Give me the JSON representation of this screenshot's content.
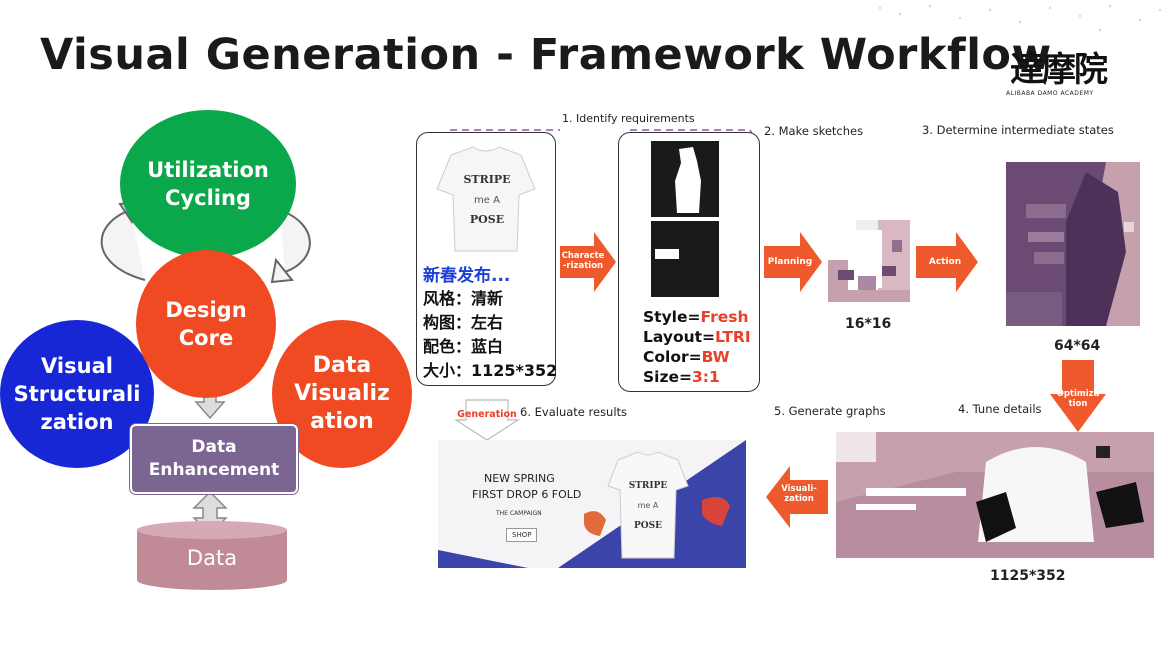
{
  "title": "Visual Generation - Framework Workflow",
  "logo": {
    "chinese": "達摩院",
    "english": "ALIBABA DAMO ACADEMY"
  },
  "cycle": {
    "utilization": "Utilization Cycling",
    "design_core": "Design Core",
    "visual_struct": "Visual Structurali zation",
    "data_viz": "Data Visualiz ation",
    "data_enhancement": "Data Enhancement",
    "data": "Data"
  },
  "workflow": {
    "steps": {
      "s1": "1. Identify requirements",
      "s2": "2. Make sketches",
      "s3": "3. Determine intermediate states",
      "s4": "4. Tune details",
      "s5": "5. Generate graphs",
      "s6": "6. Evaluate results"
    },
    "arrows": {
      "characterization": "Characte -rization",
      "planning": "Planning",
      "action": "Action",
      "optimization": "Optimiza tion",
      "visualization": "Visuali- zation",
      "generation": "Generation"
    },
    "requirement": {
      "headline": "新春发布...",
      "style": "风格：清新",
      "layout": "构图：左右",
      "color": "配色：蓝白",
      "size": "大小：1125*352"
    },
    "spec": {
      "style_key": "Style=",
      "style_val": "Fresh",
      "layout_key": "Layout=",
      "layout_val": "LTRI",
      "color_key": "Color=",
      "color_val": "BW",
      "size_key": "Size=",
      "size_val": "3:1"
    },
    "dims": {
      "d16": "16*16",
      "d64": "64*64",
      "d1125": "1125*352"
    },
    "shirt_text": {
      "line1": "STRIPE",
      "line2": "me A",
      "line3": "POSE"
    },
    "banner": {
      "line1": "NEW SPRING",
      "line2": "FIRST DROP 6 FOLD",
      "line3": "THE CAMPAIGN",
      "button": "SHOP"
    }
  },
  "colors": {
    "green": "#0aa84a",
    "red": "#f04a22",
    "blue": "#1727d6",
    "purple": "#7b6592",
    "pink": "#c08a96",
    "arrow_red": "#ee5a2b",
    "sketch_pink": "#c7a0ae",
    "sketch_purple": "#6b4a73",
    "banner_blue": "#3b44a8"
  }
}
